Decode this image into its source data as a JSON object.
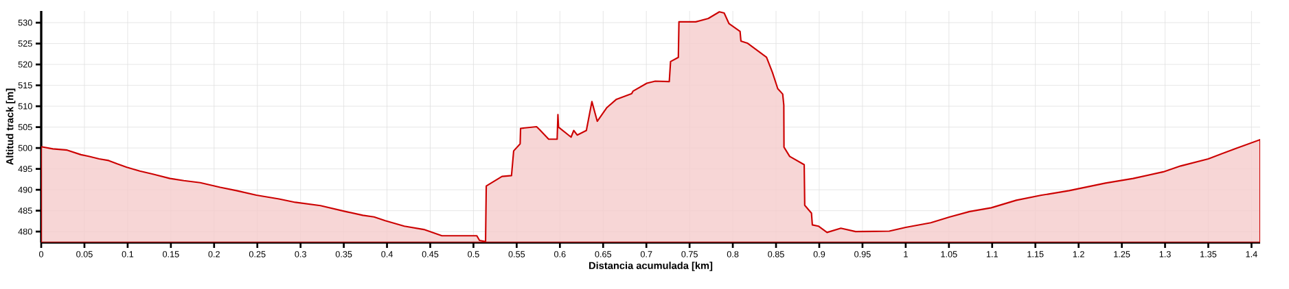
{
  "chart_data": {
    "type": "area",
    "xlabel": "Distancia acumulada [km]",
    "ylabel": "Altitud track [m]",
    "color": "#cc0000",
    "grid": true,
    "xlim": [
      0,
      1.41
    ],
    "ylim": [
      477.4,
      532.8
    ],
    "xticks": [
      0,
      0.05,
      0.1,
      0.15,
      0.2,
      0.25,
      0.3,
      0.35,
      0.4,
      0.45,
      0.5,
      0.55,
      0.6,
      0.65,
      0.7,
      0.75,
      0.8,
      0.85,
      0.9,
      0.95,
      1,
      1.05,
      1.1,
      1.15,
      1.2,
      1.25,
      1.3,
      1.35,
      1.4
    ],
    "yticks": [
      480,
      485,
      490,
      495,
      500,
      505,
      510,
      515,
      520,
      525,
      530
    ],
    "x": [
      0,
      0.0135,
      0.03,
      0.046,
      0.055,
      0.067,
      0.078,
      0.088,
      0.099,
      0.114,
      0.13,
      0.149,
      0.165,
      0.184,
      0.207,
      0.226,
      0.249,
      0.275,
      0.294,
      0.323,
      0.352,
      0.372,
      0.385,
      0.398,
      0.42,
      0.4426,
      0.4635,
      0.5039,
      0.507,
      0.514,
      0.5148,
      0.533,
      0.544,
      0.5465,
      0.554,
      0.5545,
      0.573,
      0.5765,
      0.587,
      0.5968,
      0.5977,
      0.5984,
      0.6129,
      0.616,
      0.62,
      0.6306,
      0.637,
      0.6432,
      0.654,
      0.665,
      0.683,
      0.6845,
      0.7006,
      0.7103,
      0.7265,
      0.728,
      0.737,
      0.7377,
      0.757,
      0.7716,
      0.7845,
      0.79,
      0.7955,
      0.8084,
      0.8094,
      0.8168,
      0.839,
      0.8458,
      0.852,
      0.8577,
      0.859,
      0.8592,
      0.8658,
      0.8826,
      0.8832,
      0.891,
      0.892,
      0.899,
      0.909,
      0.925,
      0.942,
      0.981,
      1.0,
      1.029,
      1.051,
      1.074,
      1.099,
      1.128,
      1.157,
      1.189,
      1.231,
      1.263,
      1.298,
      1.318,
      1.35,
      1.382,
      1.41
    ],
    "values": [
      500.3,
      499.8,
      499.5,
      498.4,
      498.0,
      497.4,
      497.0,
      496.2,
      495.4,
      494.5,
      493.7,
      492.7,
      492.2,
      491.7,
      490.6,
      489.8,
      488.7,
      487.8,
      487.0,
      486.2,
      484.8,
      483.9,
      483.5,
      482.6,
      481.3,
      480.5,
      479.0,
      479.0,
      477.9,
      477.6,
      490.9,
      493.2,
      493.4,
      499.3,
      501.0,
      504.7,
      505.1,
      504.4,
      502.1,
      502.1,
      508.0,
      505.0,
      502.6,
      504.2,
      503.1,
      504.2,
      511.1,
      506.4,
      509.6,
      511.6,
      513.0,
      513.6,
      515.5,
      516.0,
      515.9,
      520.7,
      521.7,
      530.2,
      530.2,
      531.0,
      532.6,
      532.3,
      529.8,
      527.9,
      525.6,
      525.1,
      521.7,
      518.1,
      514.2,
      512.9,
      510.3,
      500.2,
      498.0,
      496.0,
      486.3,
      484.4,
      481.6,
      481.3,
      479.8,
      480.8,
      480.0,
      480.1,
      481.0,
      482.1,
      483.5,
      484.8,
      485.7,
      487.5,
      488.7,
      489.8,
      491.6,
      492.7,
      494.3,
      495.7,
      497.4,
      499.9,
      502.0
    ]
  }
}
